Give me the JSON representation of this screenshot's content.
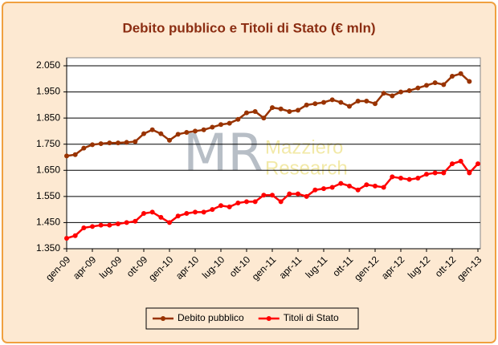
{
  "chart_data": {
    "type": "line",
    "title": "Debito pubblico e Titoli di Stato (€ mln)",
    "watermark": {
      "logo": "MR",
      "lines": [
        "Mazziero",
        "Research"
      ]
    },
    "categories": [
      "gen-09",
      null,
      null,
      "apr-09",
      null,
      null,
      "lug-09",
      null,
      null,
      "ott-09",
      null,
      null,
      "gen-10",
      null,
      null,
      "apr-10",
      null,
      null,
      "lug-10",
      null,
      null,
      "ott-10",
      null,
      null,
      "gen-11",
      null,
      null,
      "apr-11",
      null,
      null,
      "lug-11",
      null,
      null,
      "ott-11",
      null,
      null,
      "gen-12",
      null,
      null,
      "apr-12",
      null,
      null,
      "lug-12",
      null,
      null,
      "ott-12",
      null,
      null,
      "gen-13"
    ],
    "series": [
      {
        "name": "Debito pubblico",
        "color": "#993300",
        "values": [
          1705,
          1710,
          1735,
          1748,
          1752,
          1755,
          1755,
          1757,
          1760,
          1790,
          1805,
          1790,
          1765,
          1788,
          1795,
          1800,
          1805,
          1815,
          1825,
          1830,
          1845,
          1870,
          1875,
          1850,
          1890,
          1885,
          1875,
          1880,
          1900,
          1905,
          1910,
          1920,
          1910,
          1895,
          1915,
          1915,
          1905,
          1945,
          1935,
          1950,
          1955,
          1965,
          1975,
          1985,
          1978,
          2010,
          2020,
          1990,
          null
        ]
      },
      {
        "name": "Titoli di Stato",
        "color": "#ff0000",
        "values": [
          1390,
          1400,
          1430,
          1435,
          1440,
          1440,
          1445,
          1450,
          1455,
          1485,
          1490,
          1470,
          1450,
          1475,
          1485,
          1490,
          1490,
          1500,
          1515,
          1510,
          1525,
          1530,
          1530,
          1555,
          1555,
          1530,
          1560,
          1560,
          1550,
          1575,
          1580,
          1585,
          1600,
          1590,
          1575,
          1595,
          1590,
          1585,
          1625,
          1620,
          1615,
          1620,
          1635,
          1640,
          1640,
          1675,
          1685,
          1640,
          1675
        ]
      }
    ],
    "ylim": [
      1350,
      2050
    ],
    "yticks": [
      {
        "value": 1350,
        "label": "1.350"
      },
      {
        "value": 1450,
        "label": "1.450"
      },
      {
        "value": 1550,
        "label": "1.550"
      },
      {
        "value": 1650,
        "label": "1.650"
      },
      {
        "value": 1750,
        "label": "1.750"
      },
      {
        "value": 1850,
        "label": "1.850"
      },
      {
        "value": 1950,
        "label": "1.950"
      },
      {
        "value": 2050,
        "label": "2.050"
      }
    ],
    "grid": true,
    "legend": "bottom"
  }
}
